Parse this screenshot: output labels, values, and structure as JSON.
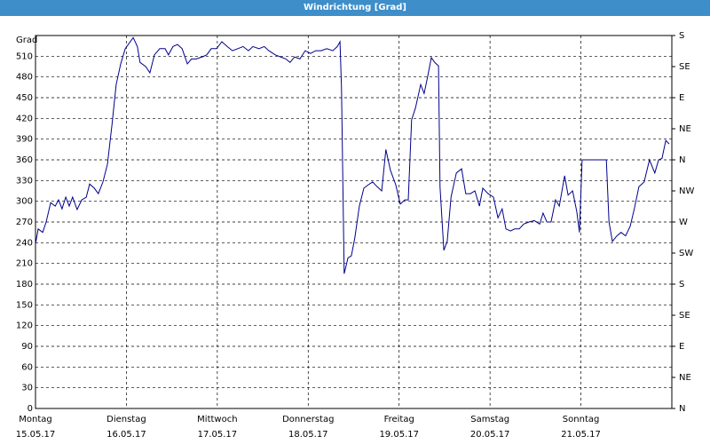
{
  "window_title": "Windrichtung [Grad]",
  "chart_data": {
    "type": "line",
    "y_label": "Grad",
    "xlim": [
      0,
      168
    ],
    "xticks": [
      {
        "value": 0,
        "label": "Montag"
      },
      {
        "value": 24,
        "label": "Dienstag"
      },
      {
        "value": 48,
        "label": "Mittwoch"
      },
      {
        "value": 72,
        "label": "Donnerstag"
      },
      {
        "value": 96,
        "label": "Freitag"
      },
      {
        "value": 120,
        "label": "Samstag"
      },
      {
        "value": 144,
        "label": "Sonntag"
      }
    ],
    "xtick_sublabels": [
      "15.05.17",
      "16.05.17",
      "17.05.17",
      "18.05.17",
      "19.05.17",
      "20.05.17",
      "21.05.17"
    ],
    "ylim": [
      0,
      540
    ],
    "yticks": [
      0,
      30,
      60,
      90,
      120,
      150,
      180,
      210,
      240,
      270,
      300,
      330,
      360,
      390,
      420,
      450,
      480,
      510
    ],
    "y2lim": [
      0,
      540
    ],
    "y2ticks": [
      {
        "value": 0,
        "label": "N"
      },
      {
        "value": 45,
        "label": "NE"
      },
      {
        "value": 90,
        "label": "E"
      },
      {
        "value": 135,
        "label": "SE"
      },
      {
        "value": 180,
        "label": "S"
      },
      {
        "value": 225,
        "label": "SW"
      },
      {
        "value": 270,
        "label": "W"
      },
      {
        "value": 315,
        "label": "NW"
      },
      {
        "value": 360,
        "label": "N"
      },
      {
        "value": 405,
        "label": "NE"
      },
      {
        "value": 450,
        "label": "E"
      },
      {
        "value": 495,
        "label": "SE"
      },
      {
        "value": 540,
        "label": "S"
      }
    ],
    "grid": true,
    "series": [
      {
        "color": "#00008b",
        "x": [
          0,
          0.7,
          1.9,
          2.8,
          4,
          5.2,
          6.1,
          7,
          8,
          8.9,
          9.8,
          11,
          12.2,
          13.4,
          14.3,
          15.5,
          16.6,
          17.8,
          19,
          20.2,
          21.3,
          22.5,
          23.7,
          25.8,
          26.9,
          27.6,
          29.1,
          30.2,
          31.4,
          32.8,
          34.2,
          35.1,
          36.3,
          37.5,
          38.7,
          40.1,
          41.2,
          42.4,
          44,
          45.2,
          46.4,
          47.8,
          49.2,
          50.6,
          52,
          53.4,
          54.8,
          56.2,
          57.4,
          59,
          60.4,
          61.6,
          63.3,
          64.7,
          66.1,
          67.2,
          68.4,
          69.8,
          71.2,
          72.6,
          74,
          75.4,
          76.9,
          78.5,
          79.7,
          80.4,
          80.8,
          81.5,
          82.5,
          83.4,
          84.3,
          85.5,
          86.7,
          87.9,
          89,
          90.2,
          91.4,
          92.5,
          93.7,
          95.1,
          96.3,
          97.5,
          98.4,
          99.3,
          100.3,
          101.7,
          102.6,
          103.6,
          104.5,
          105.4,
          106.4,
          106.8,
          107.8,
          108.7,
          109.7,
          111.1,
          112.5,
          113.6,
          114.8,
          116,
          117.2,
          118.1,
          119.5,
          120.9,
          122.1,
          123.2,
          124.2,
          125.4,
          126.5,
          127.7,
          128.9,
          130.3,
          131.7,
          133.1,
          134,
          135,
          136.1,
          137.3,
          138.3,
          139.7,
          140.6,
          141.8,
          142.9,
          143.6,
          144.3,
          147.6,
          150.7,
          151.4,
          152.3,
          153.5,
          154.6,
          155.8,
          157,
          158.1,
          159.3,
          160.7,
          162.1,
          163.5,
          164.5,
          165.4,
          166.4,
          167.3
        ],
        "values": [
          238,
          260,
          255,
          270,
          298,
          293,
          302,
          289,
          306,
          293,
          306,
          288,
          302,
          306,
          325,
          319,
          311,
          328,
          354,
          411,
          469,
          499,
          521,
          537,
          524,
          501,
          495,
          486,
          512,
          521,
          521,
          512,
          524,
          527,
          521,
          499,
          506,
          506,
          509,
          512,
          521,
          521,
          531,
          524,
          518,
          521,
          524,
          518,
          524,
          521,
          524,
          518,
          512,
          509,
          506,
          501,
          509,
          506,
          518,
          514,
          518,
          518,
          521,
          518,
          524,
          531,
          463,
          195,
          218,
          221,
          247,
          293,
          319,
          324,
          328,
          321,
          315,
          375,
          345,
          324,
          296,
          302,
          302,
          418,
          435,
          469,
          456,
          482,
          508,
          501,
          496,
          321,
          229,
          242,
          306,
          341,
          347,
          311,
          311,
          315,
          293,
          319,
          311,
          306,
          276,
          289,
          260,
          257,
          260,
          260,
          267,
          270,
          272,
          267,
          283,
          270,
          270,
          302,
          293,
          337,
          309,
          315,
          285,
          255,
          360,
          360,
          360,
          270,
          242,
          250,
          255,
          250,
          264,
          289,
          321,
          328,
          360,
          341,
          360,
          362,
          388,
          383
        ]
      }
    ]
  }
}
